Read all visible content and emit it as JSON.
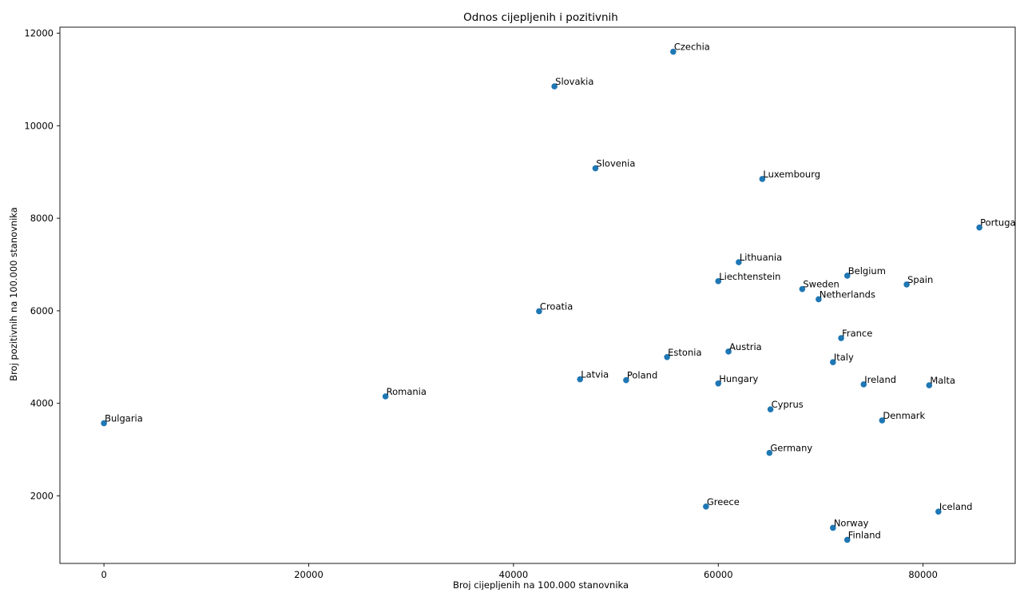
{
  "chart_data": {
    "type": "scatter",
    "title": "Odnos cijepljenih i pozitivnih",
    "xlabel": "Broj cijepljenih na 100.000 stanovnika",
    "ylabel": "Broj pozitivnih na 100.000 stanovnika",
    "xlim": [
      -4300,
      89000
    ],
    "ylim": [
      540,
      12130
    ],
    "x_ticks": [
      0,
      20000,
      40000,
      60000,
      80000
    ],
    "x_tick_labels": [
      "0",
      "20000",
      "40000",
      "60000",
      "80000"
    ],
    "y_ticks": [
      2000,
      4000,
      6000,
      8000,
      10000,
      12000
    ],
    "y_tick_labels": [
      "2000",
      "4000",
      "6000",
      "8000",
      "10000",
      "12000"
    ],
    "grid": false,
    "point_color": "#1f77b4",
    "points": [
      {
        "label": "Bulgaria",
        "x": 0,
        "y": 3570
      },
      {
        "label": "Romania",
        "x": 27500,
        "y": 4150
      },
      {
        "label": "Croatia",
        "x": 42500,
        "y": 5990
      },
      {
        "label": "Slovakia",
        "x": 44000,
        "y": 10850
      },
      {
        "label": "Latvia",
        "x": 46500,
        "y": 4520
      },
      {
        "label": "Slovenia",
        "x": 48000,
        "y": 9080
      },
      {
        "label": "Poland",
        "x": 51000,
        "y": 4500
      },
      {
        "label": "Estonia",
        "x": 55000,
        "y": 5000
      },
      {
        "label": "Czechia",
        "x": 55600,
        "y": 11600
      },
      {
        "label": "Greece",
        "x": 58800,
        "y": 1770
      },
      {
        "label": "Liechtenstein",
        "x": 60000,
        "y": 6640
      },
      {
        "label": "Hungary",
        "x": 60000,
        "y": 4430
      },
      {
        "label": "Austria",
        "x": 61000,
        "y": 5120
      },
      {
        "label": "Lithuania",
        "x": 62000,
        "y": 7050
      },
      {
        "label": "Luxembourg",
        "x": 64300,
        "y": 8850
      },
      {
        "label": "Germany",
        "x": 65000,
        "y": 2930
      },
      {
        "label": "Cyprus",
        "x": 65100,
        "y": 3870
      },
      {
        "label": "Sweden",
        "x": 68200,
        "y": 6470
      },
      {
        "label": "Netherlands",
        "x": 69800,
        "y": 6250
      },
      {
        "label": "Norway",
        "x": 71200,
        "y": 1310
      },
      {
        "label": "Italy",
        "x": 71200,
        "y": 4890
      },
      {
        "label": "France",
        "x": 72000,
        "y": 5410
      },
      {
        "label": "Belgium",
        "x": 72600,
        "y": 6760
      },
      {
        "label": "Finland",
        "x": 72600,
        "y": 1050
      },
      {
        "label": "Ireland",
        "x": 74200,
        "y": 4410
      },
      {
        "label": "Denmark",
        "x": 76000,
        "y": 3630
      },
      {
        "label": "Spain",
        "x": 78400,
        "y": 6570
      },
      {
        "label": "Malta",
        "x": 80600,
        "y": 4390
      },
      {
        "label": "Iceland",
        "x": 81500,
        "y": 1660
      },
      {
        "label": "Portuga",
        "x": 85500,
        "y": 7800
      }
    ]
  }
}
